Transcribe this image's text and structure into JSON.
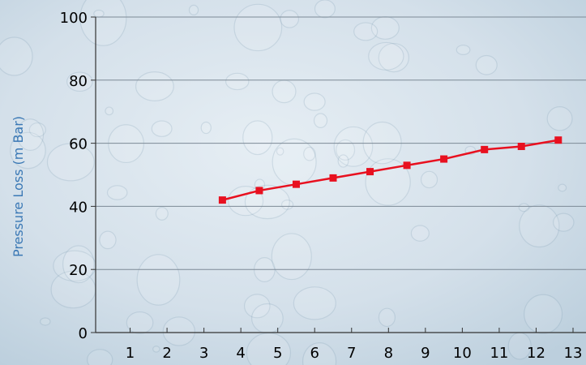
{
  "chart_data": {
    "type": "line",
    "title": "",
    "xlabel": "",
    "ylabel": "Pressure Loss (m Bar)",
    "x_ticks": [
      1,
      2,
      3,
      4,
      5,
      6,
      7,
      8,
      9,
      10,
      11,
      12,
      13
    ],
    "y_ticks": [
      0,
      20,
      40,
      60,
      80,
      100
    ],
    "xlim": [
      0,
      13
    ],
    "ylim": [
      0,
      100
    ],
    "grid": true,
    "series": [
      {
        "color": "#e8101f",
        "x": [
          3.5,
          4.5,
          5.5,
          6.5,
          7.5,
          8.5,
          9.5,
          10.6,
          11.6,
          12.6
        ],
        "y": [
          42,
          45,
          47,
          49,
          51,
          53,
          55,
          58,
          59,
          61
        ]
      }
    ]
  }
}
